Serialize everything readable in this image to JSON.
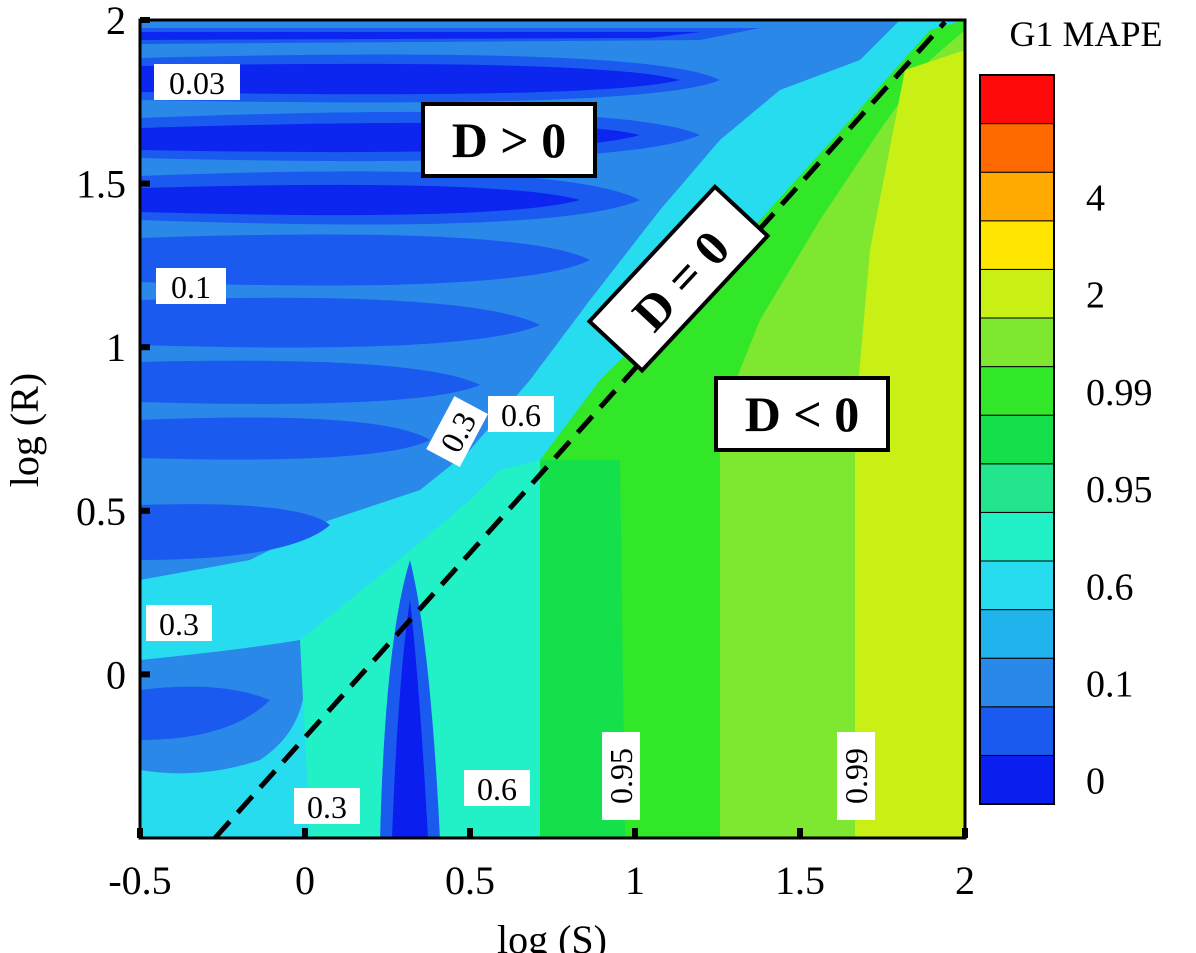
{
  "chart_data": {
    "type": "heatmap",
    "title": "",
    "xlabel": "log (S)",
    "ylabel": "log (R)",
    "xlim": [
      -0.5,
      2
    ],
    "ylim": [
      -0.5,
      2
    ],
    "xticks": [
      "-0.5",
      "0",
      "0.5",
      "1",
      "1.5",
      "2"
    ],
    "yticks": [
      "0",
      "0.5",
      "1",
      "1.5",
      "2"
    ],
    "colorbar": {
      "title": "G1 MAPE",
      "labels": [
        "0",
        "0.1",
        "0.6",
        "0.95",
        "0.99",
        "2",
        "4"
      ],
      "colors": [
        "#0a1ef0",
        "#1a5aef",
        "#2a88e8",
        "#1fb4ec",
        "#28dcef",
        "#22f0c6",
        "#22e58e",
        "#14e04c",
        "#32e628",
        "#7ee831",
        "#c8f014",
        "#ffe600",
        "#ffaa00",
        "#ff6a00",
        "#ff0a0a"
      ]
    },
    "boundary_line": {
      "label": "D = 0",
      "x": [
        -0.27,
        2
      ],
      "y": [
        -0.5,
        2
      ],
      "style": "dashed"
    },
    "regions": [
      {
        "label": "D > 0"
      },
      {
        "label": "D < 0"
      }
    ],
    "contour_labels": [
      "0.03",
      "0.1",
      "0.3",
      "0.3",
      "0.6",
      "0.3",
      "0.6",
      "0.95",
      "0.99"
    ]
  }
}
